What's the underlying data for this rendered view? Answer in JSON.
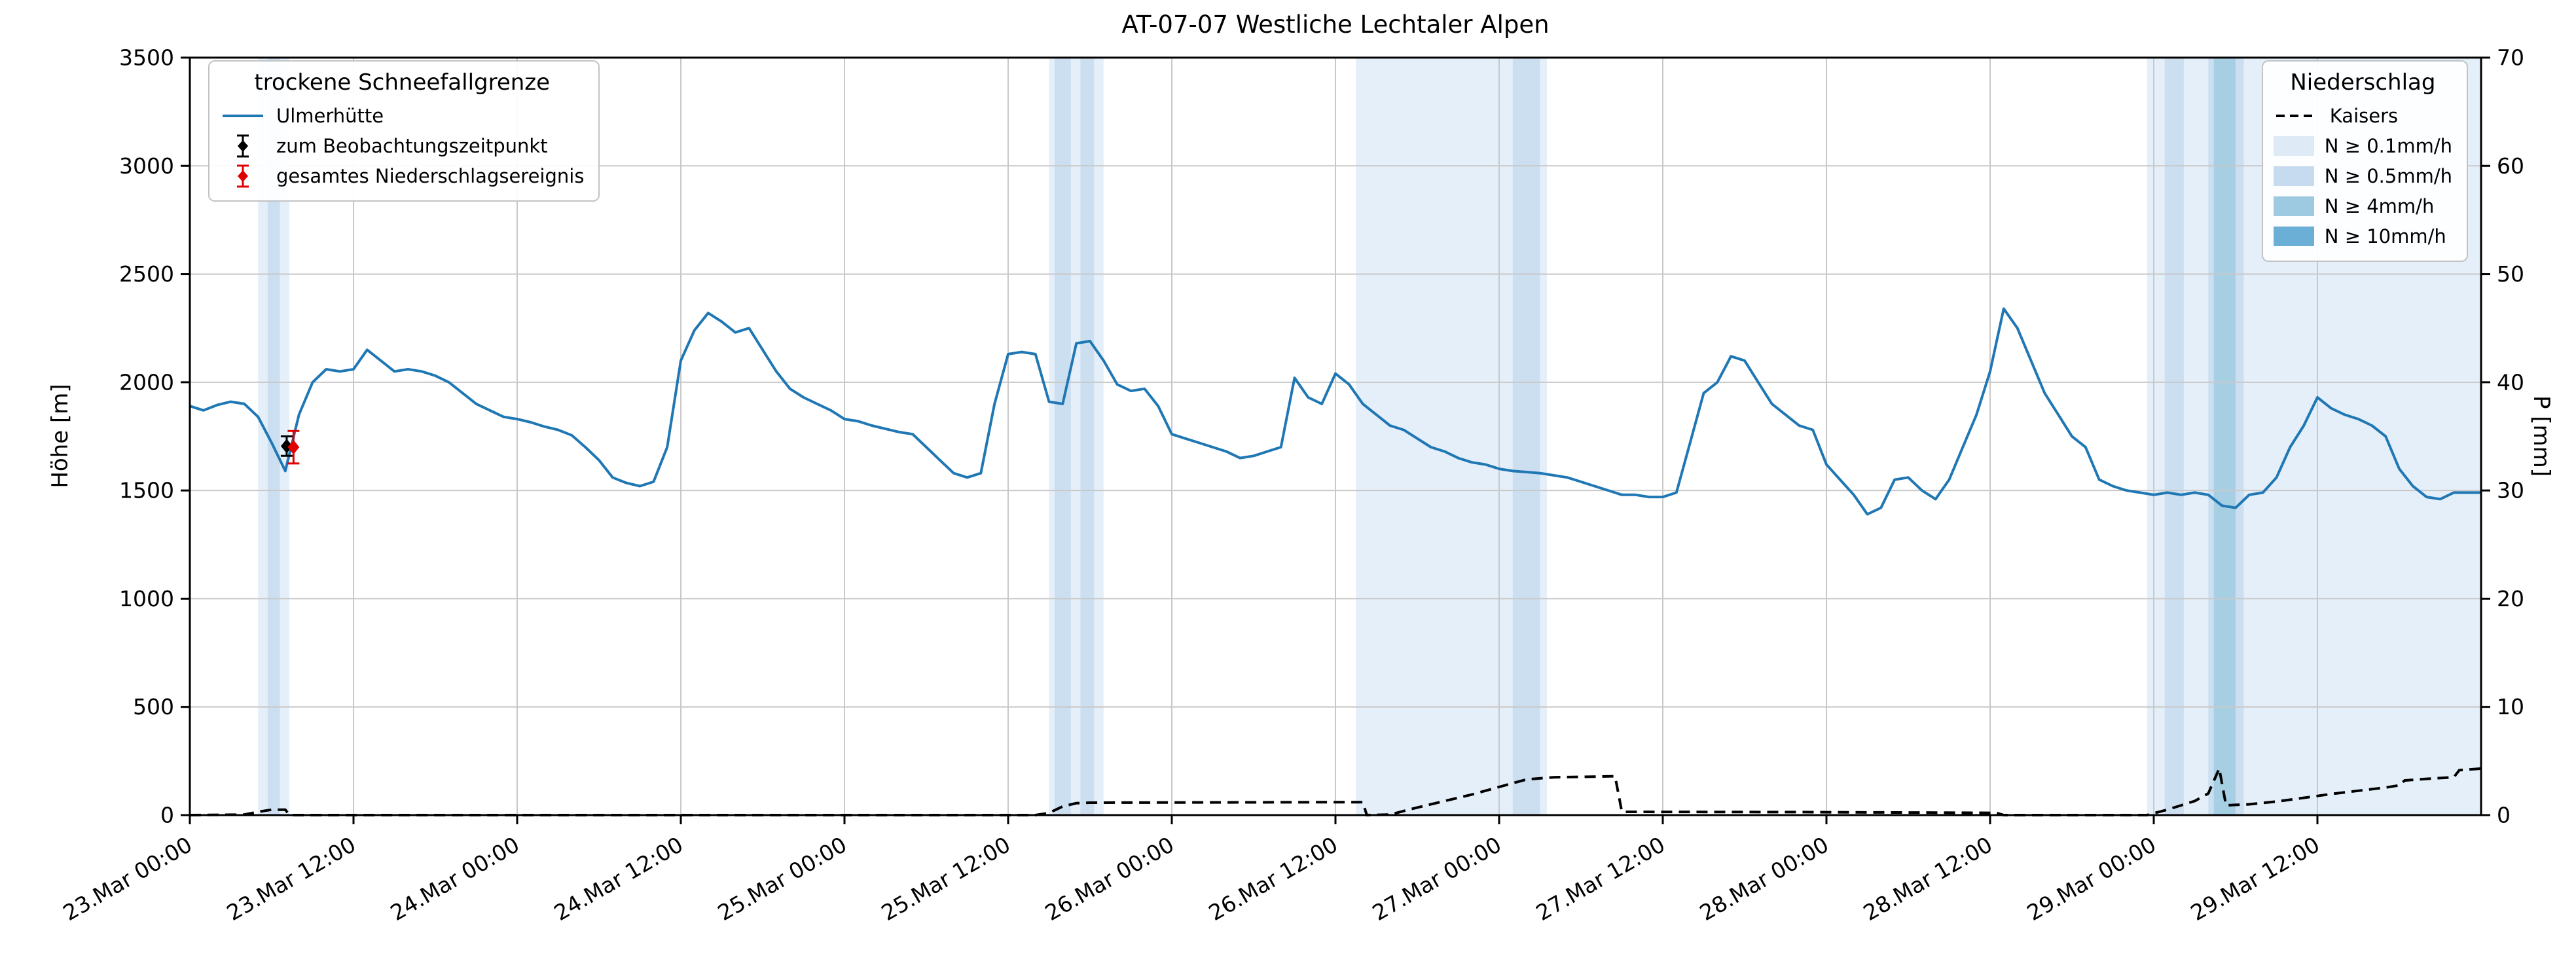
{
  "chart_data": {
    "type": "line",
    "title": "AT-07-07 Westliche Lechtaler Alpen",
    "ylabel_left": "Höhe [m]",
    "ylabel_right": "P [mm]",
    "ylim_left": [
      0,
      3500
    ],
    "ylim_right": [
      0,
      70
    ],
    "yticks_left": [
      0,
      500,
      1000,
      1500,
      2000,
      2500,
      3000,
      3500
    ],
    "yticks_right": [
      0,
      10,
      20,
      30,
      40,
      50,
      60,
      70
    ],
    "grid": true,
    "x_domain_hours": 168,
    "x_start_label": "23.Mar 00:00",
    "x_tick_hours": [
      0,
      12,
      24,
      36,
      48,
      60,
      72,
      84,
      96,
      108,
      120,
      132,
      144,
      156
    ],
    "x_tick_labels": [
      "23.Mar 00:00",
      "23.Mar 12:00",
      "24.Mar 00:00",
      "24.Mar 12:00",
      "25.Mar 00:00",
      "25.Mar 12:00",
      "26.Mar 00:00",
      "26.Mar 12:00",
      "27.Mar 00:00",
      "27.Mar 12:00",
      "28.Mar 00:00",
      "28.Mar 12:00",
      "29.Mar 00:00",
      "29.Mar 12:00"
    ],
    "series": [
      {
        "name": "Ulmerhütte",
        "axis": "left",
        "color": "#1f77b4",
        "x_step_hours": 1,
        "values": [
          1890,
          1870,
          1895,
          1910,
          1900,
          1840,
          1720,
          1590,
          1850,
          2000,
          2060,
          2050,
          2060,
          2150,
          2100,
          2050,
          2060,
          2050,
          2030,
          2000,
          1950,
          1900,
          1870,
          1840,
          1830,
          1815,
          1795,
          1780,
          1755,
          1700,
          1640,
          1560,
          1535,
          1520,
          1540,
          1700,
          2100,
          2240,
          2320,
          2280,
          2230,
          2250,
          2150,
          2050,
          1970,
          1930,
          1900,
          1870,
          1830,
          1820,
          1800,
          1785,
          1770,
          1760,
          1700,
          1640,
          1580,
          1560,
          1580,
          1900,
          2130,
          2140,
          2130,
          1910,
          1900,
          2180,
          2190,
          2100,
          1990,
          1960,
          1970,
          1890,
          1760,
          1740,
          1720,
          1700,
          1680,
          1650,
          1660,
          1680,
          1700,
          2020,
          1930,
          1900,
          2040,
          1990,
          1900,
          1850,
          1800,
          1780,
          1740,
          1700,
          1680,
          1650,
          1630,
          1620,
          1600,
          1590,
          1585,
          1580,
          1570,
          1560,
          1540,
          1520,
          1500,
          1480,
          1480,
          1470,
          1470,
          1490,
          1720,
          1950,
          2000,
          2120,
          2100,
          2000,
          1900,
          1850,
          1800,
          1780,
          1620,
          1550,
          1480,
          1390,
          1420,
          1550,
          1560,
          1500,
          1460,
          1550,
          1700,
          1850,
          2050,
          2340,
          2250,
          2100,
          1950,
          1850,
          1750,
          1700,
          1550,
          1520,
          1500,
          1490,
          1480,
          1490,
          1480,
          1490,
          1480,
          1430,
          1420,
          1480,
          1490,
          1560,
          1700,
          1800,
          1930,
          1880,
          1850,
          1830,
          1800,
          1750,
          1600,
          1520,
          1470,
          1460,
          1490,
          1490,
          1490
        ]
      },
      {
        "name": "Kaisers",
        "axis": "right",
        "color": "#000000",
        "style": "dashed",
        "points": [
          [
            0,
            0
          ],
          [
            4,
            0.05
          ],
          [
            5,
            0.3
          ],
          [
            6,
            0.5
          ],
          [
            7,
            0.5
          ],
          [
            7.3,
            0
          ],
          [
            62,
            0
          ],
          [
            63,
            0.2
          ],
          [
            64,
            0.8
          ],
          [
            65,
            1.1
          ],
          [
            66,
            1.15
          ],
          [
            85,
            1.2
          ],
          [
            86,
            1.2
          ],
          [
            86.3,
            0
          ],
          [
            88,
            0.05
          ],
          [
            90,
            0.7
          ],
          [
            92,
            1.3
          ],
          [
            94,
            1.9
          ],
          [
            96,
            2.6
          ],
          [
            98,
            3.3
          ],
          [
            100,
            3.5
          ],
          [
            103,
            3.55
          ],
          [
            104.5,
            3.6
          ],
          [
            105,
            0.3
          ],
          [
            118,
            0.28
          ],
          [
            130,
            0.22
          ],
          [
            132.5,
            0.2
          ],
          [
            133,
            0
          ],
          [
            143.5,
            0
          ],
          [
            145,
            0.5
          ],
          [
            146,
            0.9
          ],
          [
            147,
            1.3
          ],
          [
            148,
            2.0
          ],
          [
            148.8,
            4.3
          ],
          [
            149.3,
            0.9
          ],
          [
            151,
            1.0
          ],
          [
            153,
            1.25
          ],
          [
            155,
            1.6
          ],
          [
            157,
            1.95
          ],
          [
            159,
            2.25
          ],
          [
            161,
            2.55
          ],
          [
            162,
            2.75
          ],
          [
            162.4,
            3.2
          ],
          [
            164,
            3.35
          ],
          [
            166,
            3.5
          ],
          [
            166.4,
            4.15
          ],
          [
            168,
            4.3
          ]
        ]
      }
    ],
    "observations": [
      {
        "name": "zum Beobachtungszeitpunkt",
        "color": "#000000",
        "t_hours": 7.1,
        "elevation_m": 1705,
        "err_m": 45
      },
      {
        "name": "gesamtes Niederschlagsereignis",
        "color": "#e00000",
        "t_hours": 7.6,
        "elevation_m": 1700,
        "err_m": 75
      }
    ],
    "band_colors": [
      "#deebf7",
      "#c6dbef",
      "#9ecae1",
      "#6baed6"
    ],
    "precip_bands": [
      {
        "start": 5.0,
        "end": 7.3,
        "level": 0
      },
      {
        "start": 5.7,
        "end": 6.6,
        "level": 1
      },
      {
        "start": 63.0,
        "end": 67.0,
        "level": 0
      },
      {
        "start": 63.4,
        "end": 64.6,
        "level": 1
      },
      {
        "start": 65.3,
        "end": 66.3,
        "level": 1
      },
      {
        "start": 85.5,
        "end": 99.5,
        "level": 0
      },
      {
        "start": 97.0,
        "end": 99.0,
        "level": 1
      },
      {
        "start": 143.5,
        "end": 168.0,
        "level": 0
      },
      {
        "start": 144.8,
        "end": 146.2,
        "level": 1
      },
      {
        "start": 148.0,
        "end": 150.6,
        "level": 1
      },
      {
        "start": 148.4,
        "end": 150.0,
        "level": 2
      }
    ]
  },
  "legend_left": {
    "title": "trockene Schneefallgrenze",
    "entries": [
      "Ulmerhütte",
      "zum Beobachtungszeitpunkt",
      "gesamtes Niederschlagsereignis"
    ]
  },
  "legend_right": {
    "title": "Niederschlag",
    "entries": [
      "Kaisers",
      "N ≥ 0.1mm/h",
      "N ≥ 0.5mm/h",
      "N ≥ 4mm/h",
      "N ≥ 10mm/h"
    ]
  }
}
